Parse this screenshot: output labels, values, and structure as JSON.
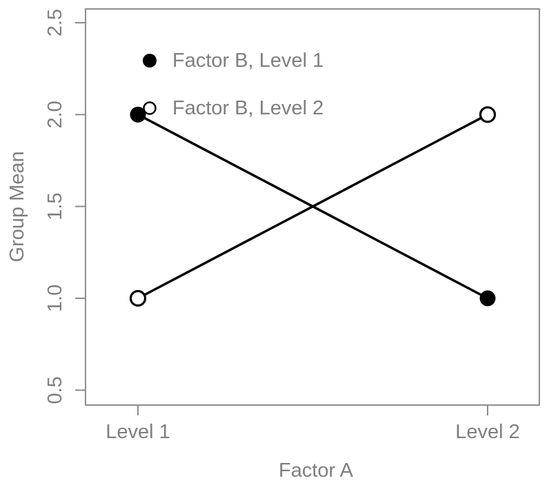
{
  "chart_data": {
    "type": "line",
    "title": "",
    "xlabel": "Factor A",
    "ylabel": "Group Mean",
    "categories": [
      "Level 1",
      "Level 2"
    ],
    "series": [
      {
        "name": "Factor B, Level 1",
        "marker": "filled-circle",
        "color": "#000000",
        "values": [
          2.0,
          1.0
        ]
      },
      {
        "name": "Factor B, Level 2",
        "marker": "open-circle",
        "color": "#000000",
        "values": [
          1.0,
          2.0
        ]
      }
    ],
    "y_ticks": [
      0.5,
      1.0,
      1.5,
      2.0,
      2.5
    ],
    "y_tick_labels": [
      "0.5",
      "1.0",
      "1.5",
      "2.0",
      "2.5"
    ],
    "x_tick_labels": [
      "Level 1",
      "Level 2"
    ],
    "ylim": [
      0.42,
      2.58
    ],
    "grid": false,
    "legend": {
      "position": "top-left-inside",
      "entries": [
        {
          "label": "Factor B, Level 1",
          "marker": "filled-circle"
        },
        {
          "label": "Factor B, Level 2",
          "marker": "open-circle"
        }
      ]
    },
    "colors": {
      "line": "#000000",
      "marker_fill": "#000000",
      "open_marker_fill": "#ffffff",
      "axis": "#8c8c8c",
      "text": "#7f7f7f",
      "background": "#ffffff"
    }
  }
}
